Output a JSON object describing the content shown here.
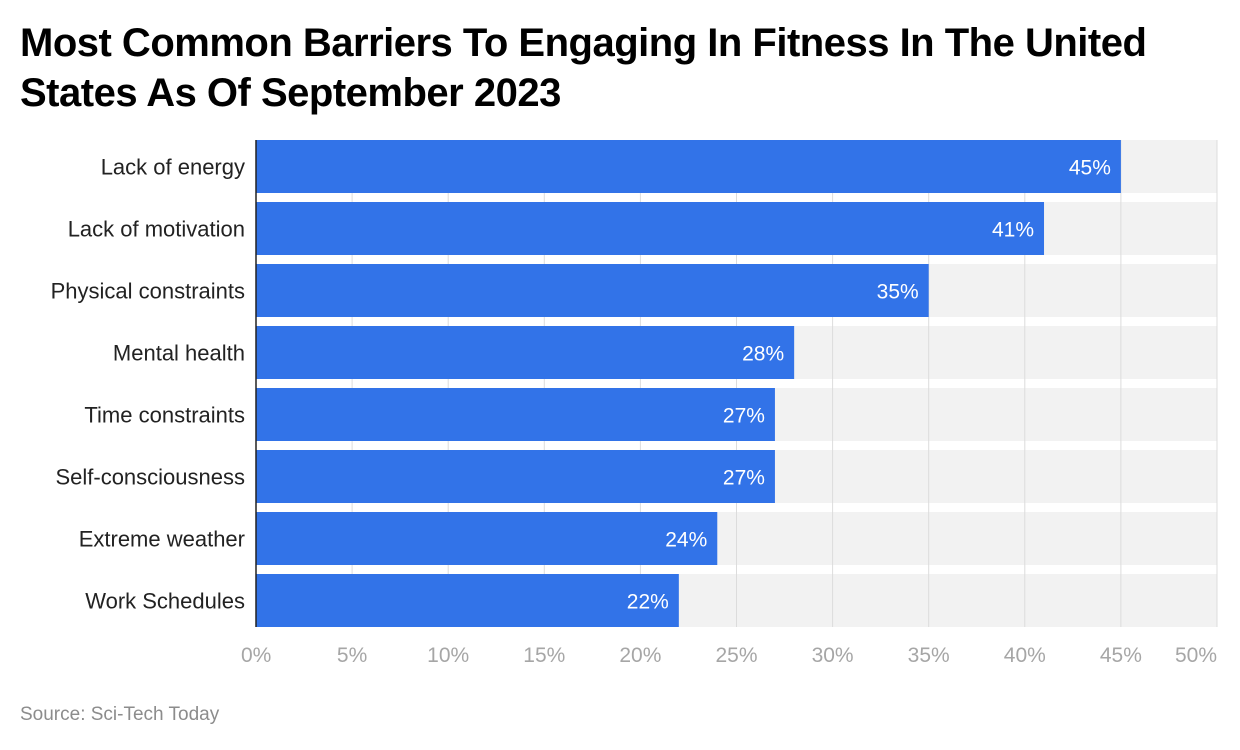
{
  "title": "Most Common Barriers To Engaging In Fitness In The United States As Of September 2023",
  "source": "Source: Sci-Tech Today",
  "colors": {
    "bar": "#3273e8",
    "track": "#f2f2f2",
    "grid": "#dcdcdc",
    "axis": "#222222"
  },
  "chart_data": {
    "type": "bar",
    "orientation": "horizontal",
    "title": "Most Common Barriers To Engaging In Fitness In The United States As Of September 2023",
    "categories": [
      "Lack of energy",
      "Lack of motivation",
      "Physical constraints",
      "Mental health",
      "Time constraints",
      "Self-consciousness",
      "Extreme weather",
      "Work Schedules"
    ],
    "values": [
      45,
      41,
      35,
      28,
      27,
      27,
      24,
      22
    ],
    "value_labels": [
      "45%",
      "41%",
      "35%",
      "28%",
      "27%",
      "27%",
      "24%",
      "22%"
    ],
    "xlim": [
      0,
      50
    ],
    "xticks": [
      0,
      5,
      10,
      15,
      20,
      25,
      30,
      35,
      40,
      45,
      50
    ],
    "xtick_labels": [
      "0%",
      "5%",
      "10%",
      "15%",
      "20%",
      "25%",
      "30%",
      "35%",
      "40%",
      "45%",
      "50%"
    ],
    "xlabel": "",
    "ylabel": "",
    "grid": true,
    "legend": "none"
  }
}
